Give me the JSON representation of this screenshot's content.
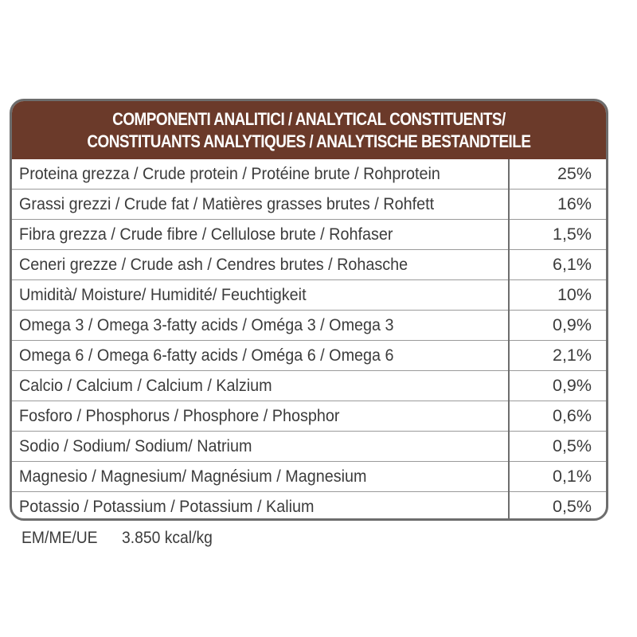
{
  "header": {
    "line1": "COMPONENTI ANALITICI / ANALYTICAL CONSTITUENTS/",
    "line2": "CONSTITUANTS ANALYTIQUES / ANALYTISCHE BESTANDTEILE"
  },
  "rows": [
    {
      "label": "Proteina grezza / Crude protein / Protéine brute / Rohprotein",
      "value": "25%"
    },
    {
      "label": "Grassi grezzi / Crude fat / Matières grasses brutes / Rohfett",
      "value": "16%"
    },
    {
      "label": "Fibra grezza / Crude fibre / Cellulose brute / Rohfaser",
      "value": "1,5%"
    },
    {
      "label": "Ceneri grezze / Crude ash / Cendres brutes / Rohasche",
      "value": "6,1%"
    },
    {
      "label": "Umidità/ Moisture/ Humidité/ Feuchtigkeit",
      "value": "10%"
    },
    {
      "label": "Omega 3 / Omega 3-fatty acids / Oméga 3 / Omega 3",
      "value": "0,9%"
    },
    {
      "label": "Omega 6 / Omega 6-fatty acids / Oméga 6 / Omega 6",
      "value": "2,1%"
    },
    {
      "label": "Calcio / Calcium / Calcium / Kalzium",
      "value": "0,9%"
    },
    {
      "label": "Fosforo / Phosphorus / Phosphore / Phosphor",
      "value": "0,6%"
    },
    {
      "label": "Sodio / Sodium/ Sodium/ Natrium",
      "value": "0,5%"
    },
    {
      "label": "Magnesio / Magnesium/ Magnésium / Magnesium",
      "value": "0,1%"
    },
    {
      "label": "Potassio / Potassium /  Potassium /  Kalium",
      "value": "0,5%"
    }
  ],
  "energy": {
    "label": "EM/ME/UE",
    "value": "3.850 kcal/kg"
  }
}
